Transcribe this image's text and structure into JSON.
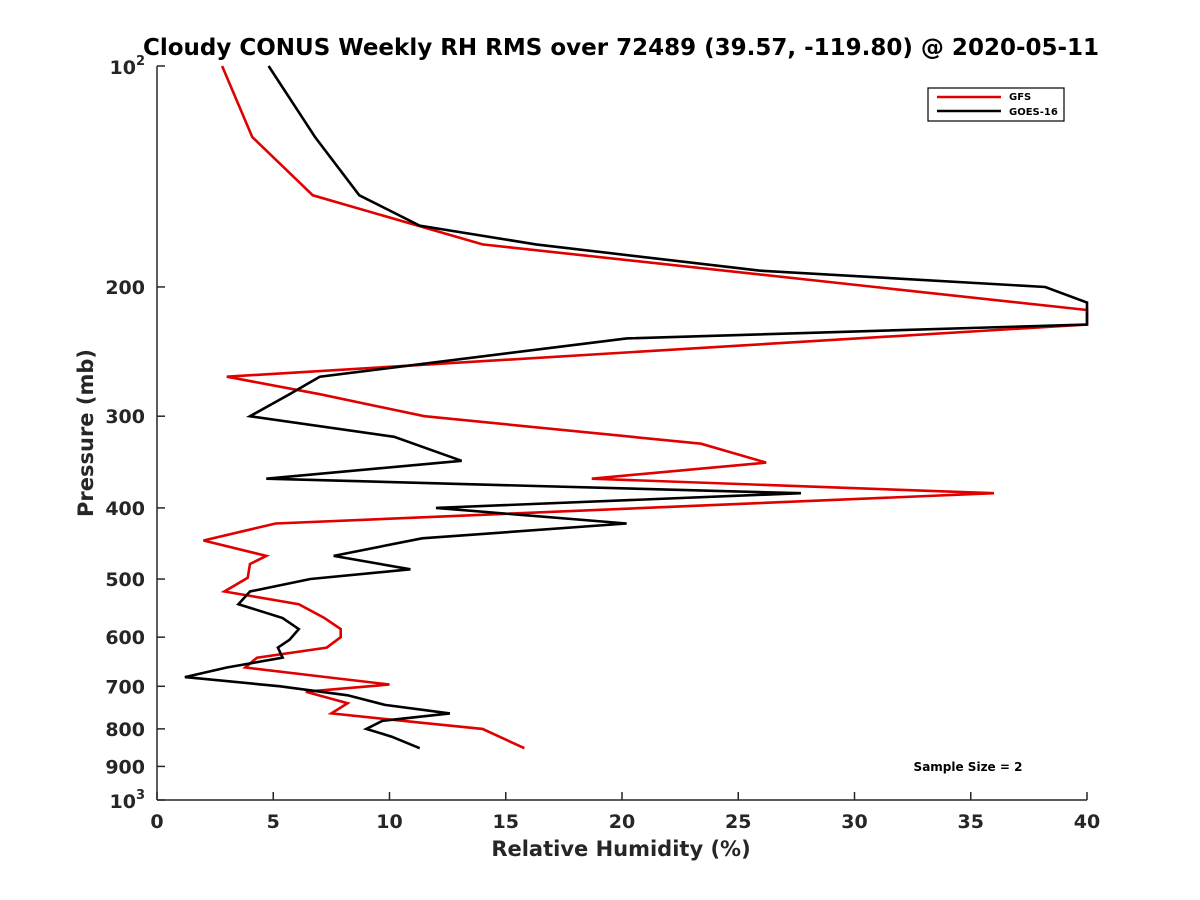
{
  "chart_data": {
    "type": "line",
    "title": "Cloudy CONUS Weekly RH RMS over 72489 (39.57, -119.80) @ 2020-05-11",
    "xlabel": "Relative Humidity (%)",
    "ylabel": "Pressure (mb)",
    "xlim": [
      0,
      40
    ],
    "ylim": [
      100,
      1000
    ],
    "y_scale": "log",
    "y_reversed": true,
    "grid": false,
    "x_ticks": [
      {
        "value": 0,
        "label": "0"
      },
      {
        "value": 5,
        "label": "5"
      },
      {
        "value": 10,
        "label": "10"
      },
      {
        "value": 15,
        "label": "15"
      },
      {
        "value": 20,
        "label": "20"
      },
      {
        "value": 25,
        "label": "25"
      },
      {
        "value": 30,
        "label": "30"
      },
      {
        "value": 35,
        "label": "35"
      },
      {
        "value": 40,
        "label": "40"
      }
    ],
    "y_ticks": [
      {
        "value": 100,
        "base": "10",
        "exp": "2"
      },
      {
        "value": 200,
        "label": "200"
      },
      {
        "value": 300,
        "label": "300"
      },
      {
        "value": 400,
        "label": "400"
      },
      {
        "value": 500,
        "label": "500"
      },
      {
        "value": 600,
        "label": "600"
      },
      {
        "value": 700,
        "label": "700"
      },
      {
        "value": 800,
        "label": "800"
      },
      {
        "value": 900,
        "label": "900"
      },
      {
        "value": 1000,
        "base": "10",
        "exp": "3"
      }
    ],
    "legend_position": "top-right",
    "annotation": "Sample Size = 2",
    "series": [
      {
        "name": "GFS",
        "color": "#e00000",
        "points": [
          [
            2.8,
            100
          ],
          [
            4.1,
            125
          ],
          [
            6.7,
            150
          ],
          [
            14.0,
            175
          ],
          [
            40.0,
            215
          ],
          [
            40.0,
            225
          ],
          [
            3.0,
            265
          ],
          [
            7.0,
            280
          ],
          [
            11.5,
            300
          ],
          [
            23.4,
            327
          ],
          [
            26.2,
            347
          ],
          [
            18.7,
            365
          ],
          [
            36.0,
            382
          ],
          [
            5.1,
            420
          ],
          [
            2.0,
            443
          ],
          [
            4.7,
            465
          ],
          [
            4.0,
            477
          ],
          [
            3.9,
            498
          ],
          [
            2.9,
            520
          ],
          [
            6.1,
            541
          ],
          [
            7.2,
            565
          ],
          [
            7.9,
            585
          ],
          [
            7.9,
            600
          ],
          [
            7.3,
            620
          ],
          [
            4.3,
            640
          ],
          [
            3.8,
            660
          ],
          [
            7.6,
            682
          ],
          [
            10.0,
            696
          ],
          [
            6.4,
            712
          ],
          [
            8.2,
            738
          ],
          [
            7.5,
            762
          ],
          [
            11.4,
            785
          ],
          [
            14.0,
            800
          ],
          [
            15.8,
            850
          ]
        ]
      },
      {
        "name": "GOES-16",
        "color": "#000000",
        "points": [
          [
            4.8,
            100
          ],
          [
            6.8,
            125
          ],
          [
            8.7,
            150
          ],
          [
            11.3,
            165
          ],
          [
            16.3,
            175
          ],
          [
            25.9,
            190
          ],
          [
            38.2,
            200
          ],
          [
            40.0,
            210
          ],
          [
            40.0,
            225
          ],
          [
            20.2,
            235
          ],
          [
            7.0,
            265
          ],
          [
            5.7,
            280
          ],
          [
            4.0,
            300
          ],
          [
            10.2,
            320
          ],
          [
            13.1,
            345
          ],
          [
            4.7,
            365
          ],
          [
            27.7,
            382
          ],
          [
            12.0,
            400
          ],
          [
            20.2,
            420
          ],
          [
            11.4,
            440
          ],
          [
            7.6,
            465
          ],
          [
            10.9,
            485
          ],
          [
            6.6,
            500
          ],
          [
            4.0,
            520
          ],
          [
            3.5,
            541
          ],
          [
            5.4,
            565
          ],
          [
            6.1,
            585
          ],
          [
            5.7,
            605
          ],
          [
            5.2,
            620
          ],
          [
            5.4,
            640
          ],
          [
            3.0,
            660
          ],
          [
            1.2,
            680
          ],
          [
            5.3,
            700
          ],
          [
            8.2,
            720
          ],
          [
            9.8,
            742
          ],
          [
            12.6,
            762
          ],
          [
            9.7,
            780
          ],
          [
            9.0,
            800
          ],
          [
            10.1,
            820
          ],
          [
            11.3,
            850
          ]
        ]
      }
    ]
  }
}
